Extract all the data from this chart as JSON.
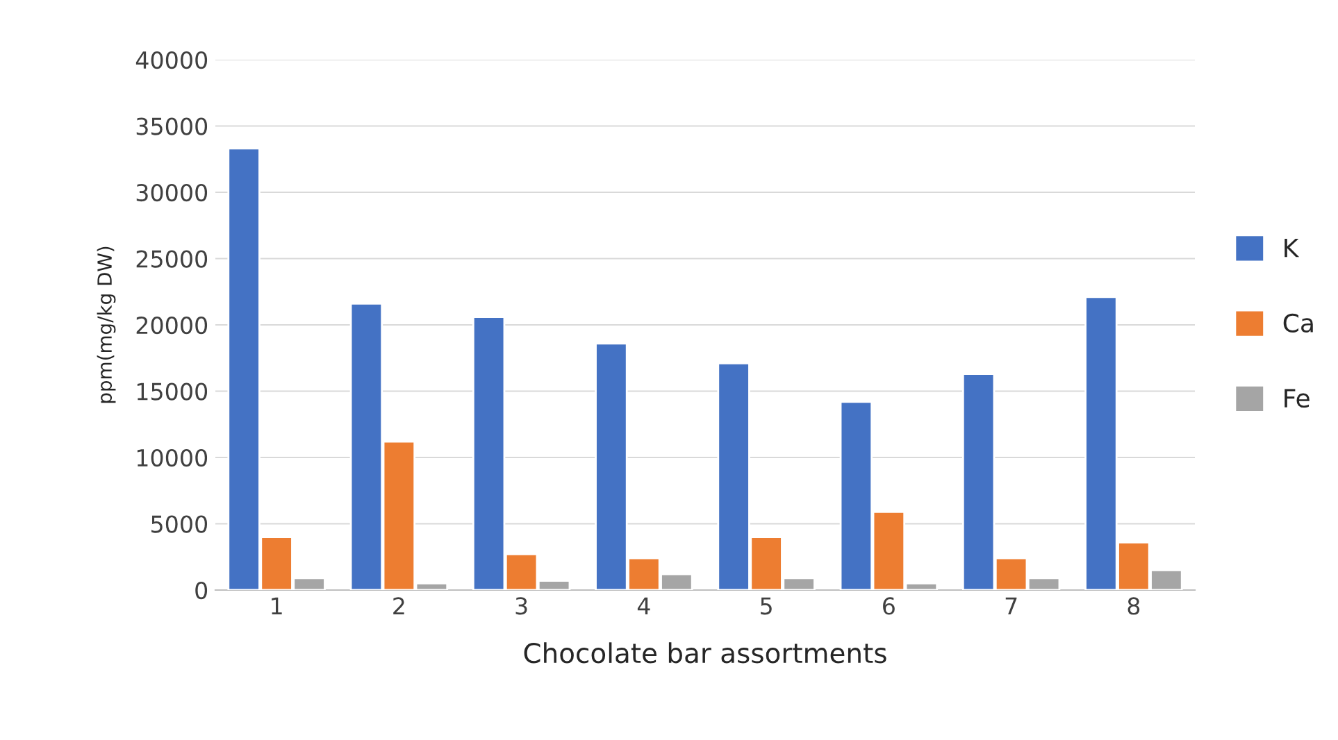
{
  "chart_data": {
    "type": "bar",
    "xlabel": "Chocolate bar assortments",
    "ylabel": "ppm(mg/kg DW)",
    "categories": [
      "1",
      "2",
      "3",
      "4",
      "5",
      "6",
      "7",
      "8"
    ],
    "series": [
      {
        "name": "K",
        "color": "#4472c4",
        "values": [
          33300,
          21600,
          20600,
          18600,
          17100,
          14200,
          16300,
          22100
        ]
      },
      {
        "name": "Ca",
        "color": "#ed7d31",
        "values": [
          4000,
          11200,
          2700,
          2400,
          4000,
          5900,
          2400,
          3600
        ]
      },
      {
        "name": "Fe",
        "color": "#a5a5a5",
        "values": [
          900,
          500,
          700,
          1200,
          900,
          500,
          900,
          1500
        ]
      }
    ],
    "ylim": [
      0,
      40000
    ],
    "yticks": [
      0,
      5000,
      10000,
      15000,
      20000,
      25000,
      30000,
      35000,
      40000
    ],
    "grid": "y",
    "legend": "right"
  }
}
